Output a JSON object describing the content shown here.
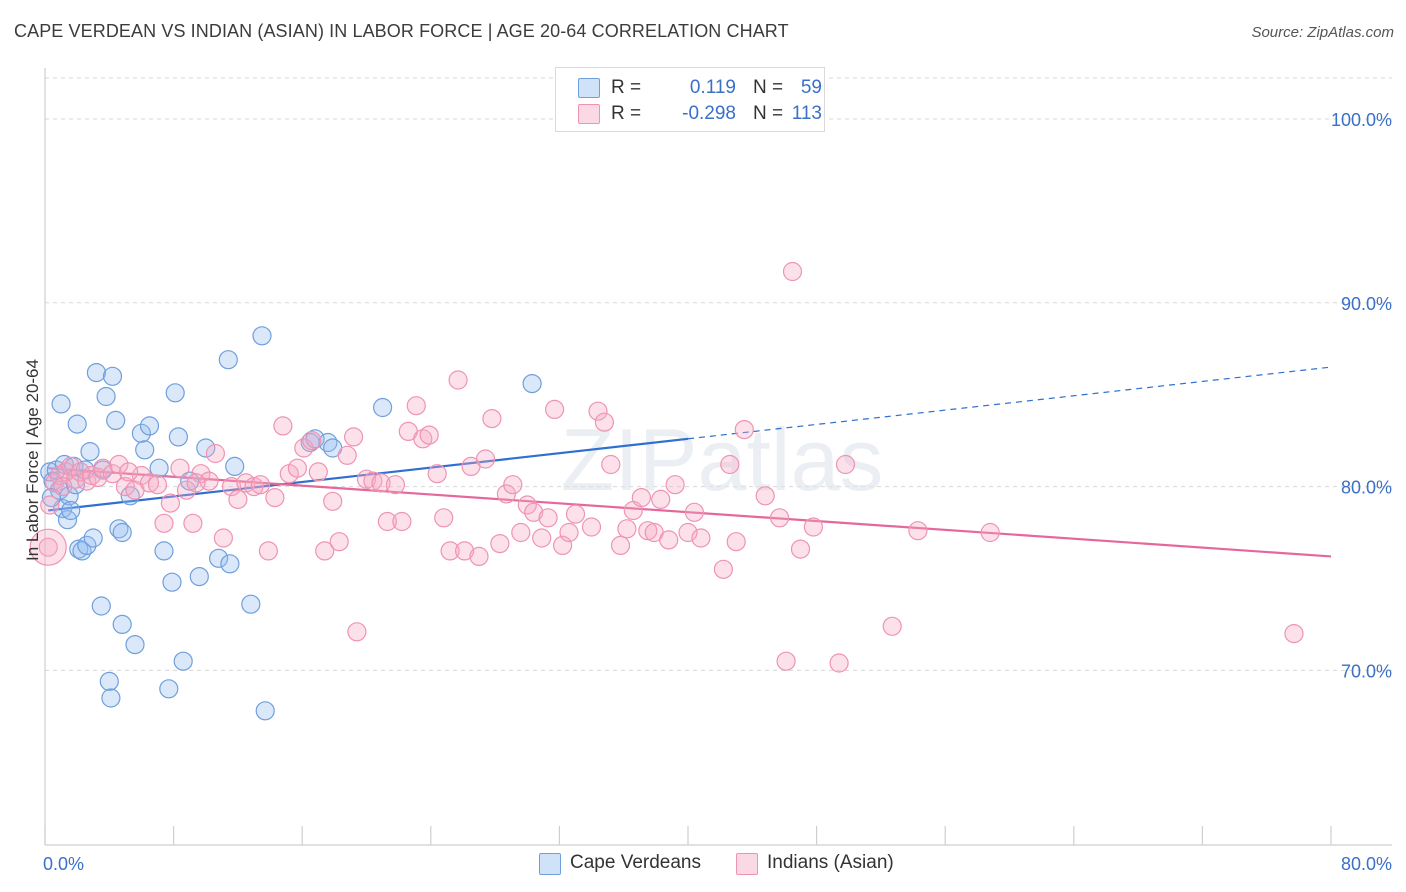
{
  "title": "CAPE VERDEAN VS INDIAN (ASIAN) IN LABOR FORCE | AGE 20-64 CORRELATION CHART",
  "source": "Source: ZipAtlas.com",
  "watermark": "ZIPatlas",
  "legend": {
    "blue": {
      "r_label": "R =",
      "r_value": "0.119",
      "n_label": "N =",
      "n_value": "59",
      "color": "#6f9fdc"
    },
    "pink": {
      "r_label": "R =",
      "r_value": "-0.298",
      "n_label": "N =",
      "n_value": "113",
      "color": "#ef93b3"
    }
  },
  "chart_data": {
    "type": "scatter",
    "title": "CAPE VERDEAN VS INDIAN (ASIAN) IN LABOR FORCE | AGE 20-64 CORRELATION CHART",
    "xlabel": "",
    "ylabel": "In Labor Force | Age 20-64",
    "xlim": [
      0,
      80
    ],
    "ylim": [
      60.5,
      102.5
    ],
    "x_tick_labels": [
      "0.0%",
      "80.0%"
    ],
    "y_ticks": [
      70,
      80,
      90,
      100
    ],
    "y_tick_labels": [
      "70.0%",
      "80.0%",
      "90.0%",
      "100.0%"
    ],
    "grid": true,
    "series": [
      {
        "name": "Cape Verdeans",
        "color": "#6f9fdc",
        "fill": "rgba(150,190,240,0.35)",
        "trend": {
          "x0": 0.2,
          "y0": 78.7,
          "x1": 40.0,
          "y1": 82.6,
          "dash_to_x": 80.0,
          "dash_to_y": 86.5
        },
        "points": [
          [
            0.3,
            80.8
          ],
          [
            0.5,
            80.3
          ],
          [
            0.7,
            80.9
          ],
          [
            0.9,
            79.8
          ],
          [
            1.0,
            84.5
          ],
          [
            1.1,
            78.8
          ],
          [
            1.2,
            81.2
          ],
          [
            1.4,
            78.2
          ],
          [
            1.5,
            79.5
          ],
          [
            1.6,
            78.7
          ],
          [
            1.8,
            81.1
          ],
          [
            2.0,
            83.4
          ],
          [
            2.1,
            76.6
          ],
          [
            2.3,
            76.5
          ],
          [
            2.5,
            80.9
          ],
          [
            2.6,
            76.8
          ],
          [
            2.8,
            81.9
          ],
          [
            3.0,
            77.2
          ],
          [
            3.2,
            86.2
          ],
          [
            3.5,
            73.5
          ],
          [
            3.6,
            80.9
          ],
          [
            3.8,
            84.9
          ],
          [
            4.0,
            69.4
          ],
          [
            4.1,
            68.5
          ],
          [
            4.2,
            86.0
          ],
          [
            4.4,
            83.6
          ],
          [
            4.6,
            77.7
          ],
          [
            4.8,
            77.5
          ],
          [
            4.8,
            72.5
          ],
          [
            5.3,
            79.5
          ],
          [
            5.6,
            71.4
          ],
          [
            6.0,
            82.9
          ],
          [
            6.2,
            82.0
          ],
          [
            6.5,
            83.3
          ],
          [
            7.1,
            81.0
          ],
          [
            7.4,
            76.5
          ],
          [
            7.7,
            69.0
          ],
          [
            7.9,
            74.8
          ],
          [
            8.1,
            85.1
          ],
          [
            8.3,
            82.7
          ],
          [
            8.6,
            70.5
          ],
          [
            9.0,
            80.3
          ],
          [
            9.6,
            75.1
          ],
          [
            10.0,
            82.1
          ],
          [
            10.8,
            76.1
          ],
          [
            11.4,
            86.9
          ],
          [
            11.5,
            75.8
          ],
          [
            11.8,
            81.1
          ],
          [
            12.8,
            73.6
          ],
          [
            13.5,
            88.2
          ],
          [
            13.7,
            67.8
          ],
          [
            16.5,
            82.4
          ],
          [
            16.8,
            82.6
          ],
          [
            17.6,
            82.4
          ],
          [
            17.9,
            82.1
          ],
          [
            21.0,
            84.3
          ],
          [
            30.3,
            85.6
          ],
          [
            0.4,
            79.4
          ],
          [
            1.9,
            80.1
          ]
        ]
      },
      {
        "name": "Indians (Asian)",
        "color": "#ef93b3",
        "fill": "rgba(245,170,195,0.35)",
        "trend": {
          "x0": 0.2,
          "y0": 81.0,
          "x1": 80.0,
          "y1": 76.2
        },
        "points": [
          [
            0.3,
            79.0
          ],
          [
            0.6,
            80.2
          ],
          [
            0.9,
            80.6
          ],
          [
            1.3,
            80.8
          ],
          [
            1.6,
            81.1
          ],
          [
            1.9,
            80.4
          ],
          [
            2.2,
            80.8
          ],
          [
            2.6,
            80.3
          ],
          [
            2.9,
            80.6
          ],
          [
            3.3,
            80.5
          ],
          [
            3.6,
            81.0
          ],
          [
            4.2,
            80.7
          ],
          [
            4.6,
            81.2
          ],
          [
            5.0,
            80.0
          ],
          [
            5.6,
            79.8
          ],
          [
            6.0,
            80.6
          ],
          [
            6.5,
            80.2
          ],
          [
            7.0,
            80.1
          ],
          [
            7.4,
            78.0
          ],
          [
            7.8,
            79.1
          ],
          [
            8.4,
            81.0
          ],
          [
            8.8,
            79.8
          ],
          [
            9.2,
            78.0
          ],
          [
            9.7,
            80.7
          ],
          [
            10.2,
            80.3
          ],
          [
            10.6,
            81.8
          ],
          [
            11.1,
            77.2
          ],
          [
            11.6,
            80.0
          ],
          [
            12.0,
            79.3
          ],
          [
            12.5,
            80.2
          ],
          [
            13.0,
            80.0
          ],
          [
            13.4,
            80.1
          ],
          [
            13.9,
            76.5
          ],
          [
            14.3,
            79.4
          ],
          [
            14.8,
            83.3
          ],
          [
            15.2,
            80.7
          ],
          [
            15.7,
            81.0
          ],
          [
            16.1,
            82.1
          ],
          [
            16.6,
            82.5
          ],
          [
            17.0,
            80.8
          ],
          [
            17.4,
            76.5
          ],
          [
            17.9,
            79.2
          ],
          [
            18.3,
            77.0
          ],
          [
            18.8,
            81.7
          ],
          [
            19.2,
            82.7
          ],
          [
            19.4,
            72.1
          ],
          [
            20.0,
            80.4
          ],
          [
            20.4,
            80.3
          ],
          [
            20.9,
            80.2
          ],
          [
            21.3,
            78.1
          ],
          [
            21.8,
            80.1
          ],
          [
            22.2,
            78.1
          ],
          [
            22.6,
            83.0
          ],
          [
            23.1,
            84.4
          ],
          [
            23.5,
            82.6
          ],
          [
            23.9,
            82.8
          ],
          [
            24.4,
            80.7
          ],
          [
            24.8,
            78.3
          ],
          [
            25.2,
            76.5
          ],
          [
            25.7,
            85.8
          ],
          [
            26.1,
            76.5
          ],
          [
            26.5,
            81.1
          ],
          [
            27.0,
            76.2
          ],
          [
            27.4,
            81.5
          ],
          [
            27.8,
            83.7
          ],
          [
            28.3,
            76.9
          ],
          [
            28.7,
            79.6
          ],
          [
            29.1,
            80.1
          ],
          [
            29.6,
            77.5
          ],
          [
            30.0,
            79.0
          ],
          [
            30.4,
            78.6
          ],
          [
            30.9,
            77.2
          ],
          [
            31.3,
            78.3
          ],
          [
            31.7,
            84.2
          ],
          [
            32.2,
            76.8
          ],
          [
            32.6,
            77.5
          ],
          [
            33.0,
            78.5
          ],
          [
            34.0,
            77.8
          ],
          [
            34.4,
            84.1
          ],
          [
            34.8,
            83.5
          ],
          [
            35.2,
            81.2
          ],
          [
            35.8,
            76.8
          ],
          [
            36.2,
            77.7
          ],
          [
            36.6,
            78.7
          ],
          [
            37.1,
            79.4
          ],
          [
            37.5,
            77.6
          ],
          [
            37.9,
            77.5
          ],
          [
            38.3,
            79.3
          ],
          [
            38.8,
            77.1
          ],
          [
            39.2,
            80.1
          ],
          [
            40.0,
            77.5
          ],
          [
            40.4,
            78.6
          ],
          [
            40.8,
            77.2
          ],
          [
            42.2,
            75.5
          ],
          [
            42.6,
            81.2
          ],
          [
            43.0,
            77.0
          ],
          [
            43.5,
            83.1
          ],
          [
            44.8,
            79.5
          ],
          [
            45.7,
            78.3
          ],
          [
            46.1,
            70.5
          ],
          [
            46.5,
            91.7
          ],
          [
            47.0,
            76.6
          ],
          [
            47.8,
            77.8
          ],
          [
            49.4,
            70.4
          ],
          [
            49.8,
            81.2
          ],
          [
            52.7,
            72.4
          ],
          [
            54.3,
            77.6
          ],
          [
            58.8,
            77.5
          ],
          [
            77.7,
            72.0
          ],
          [
            0.2,
            76.7
          ],
          [
            1.1,
            80.0
          ],
          [
            5.2,
            80.8
          ],
          [
            9.4,
            80.2
          ]
        ]
      }
    ],
    "legend": [
      "Cape Verdeans",
      "Indians (Asian)"
    ]
  }
}
